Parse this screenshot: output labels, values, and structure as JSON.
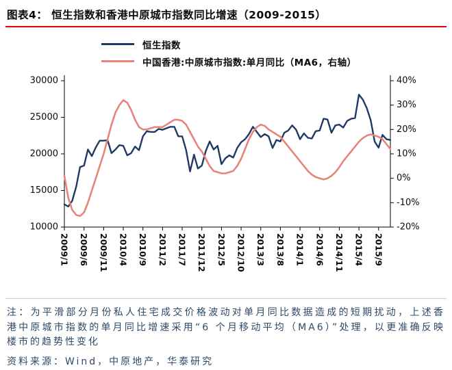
{
  "header": {
    "title": "图表4：  恒生指数和香港中原城市指数同比增速（2009-2015）"
  },
  "legend": [
    {
      "label": "恒生指数",
      "color": "#1f3864"
    },
    {
      "label": "中国香港:中原城市指数:单月同比（MA6，右轴）",
      "color": "#e8837c"
    }
  ],
  "footnote": {
    "note": "注：为平滑部分月份私人住宅成交价格波动对单月同比数据造成的短期扰动，上述香港中原城市指数的单月同比增速采用“6 个月移动平均（MA6）”处理，以更准确反映楼市的趋势性变化",
    "source": "资料来源：Wind，中原地产，华泰研究"
  },
  "colors": {
    "accent_rule": "#e60000",
    "axis": "#000000",
    "hsi_line": "#1f3864",
    "centaline_line": "#e8837c"
  },
  "chart_data": {
    "type": "line",
    "title": "恒生指数和香港中原城市指数同比增速（2009-2015）",
    "x_monthly_start": "2009/1",
    "x_monthly_end": "2015/12",
    "x_tick_indices": [
      0,
      5,
      10,
      15,
      20,
      25,
      30,
      35,
      40,
      45,
      50,
      55,
      60,
      65,
      70,
      75,
      80
    ],
    "x_tick_labels": [
      "2009/1",
      "2009/6",
      "2009/11",
      "2010/4",
      "2010/9",
      "2011/2",
      "2011/7",
      "2011/12",
      "2012/5",
      "2012/10",
      "2013/3",
      "2013/8",
      "2014/1",
      "2014/6",
      "2014/11",
      "2015/4",
      "2015/9"
    ],
    "left_axis": {
      "min": 10000,
      "max": 30000,
      "tick_values": [
        30000,
        25000,
        20000,
        15000,
        10000
      ],
      "tick_labels": [
        "30000",
        "25000",
        "20000",
        "15000",
        "10000"
      ]
    },
    "right_axis": {
      "min": -20,
      "max": 40,
      "tick_values": [
        40,
        30,
        20,
        10,
        0,
        -10,
        -20
      ],
      "tick_labels": [
        "40%",
        "30%",
        "20%",
        "10%",
        "0%",
        "-10%",
        "-20%"
      ]
    },
    "grid": false,
    "legend_position": "top",
    "series": [
      {
        "name": "恒生指数",
        "axis": "left",
        "color": "#1f3864",
        "width": 2.4,
        "values": [
          13100,
          12800,
          13600,
          15500,
          18200,
          18400,
          20600,
          19700,
          20900,
          21800,
          21800,
          21870,
          20100,
          20600,
          21200,
          21100,
          19800,
          20100,
          21000,
          20500,
          22400,
          23100,
          23000,
          23000,
          23400,
          23300,
          23500,
          23700,
          23700,
          22400,
          22400,
          20500,
          17600,
          19900,
          18000,
          18400,
          20400,
          21700,
          20600,
          21100,
          18600,
          19400,
          19800,
          19500,
          20800,
          21600,
          22000,
          22700,
          23700,
          23000,
          22300,
          22700,
          22400,
          20800,
          21900,
          21700,
          22900,
          23200,
          23900,
          23300,
          22000,
          22800,
          22200,
          22100,
          23100,
          23200,
          24800,
          24700,
          22900,
          23900,
          24000,
          23600,
          24500,
          24800,
          24900,
          28100,
          27400,
          26250,
          24600,
          21670,
          20850,
          22600,
          22000,
          21900
        ]
      },
      {
        "name": "中国香港:中原城市指数:单月同比（MA6，右轴）",
        "axis": "right",
        "color": "#e8837c",
        "width": 2.6,
        "values": [
          1,
          -8,
          -13,
          -15,
          -15.5,
          -14,
          -10,
          -5,
          0,
          5,
          10,
          16,
          22,
          27,
          30,
          32,
          31,
          28,
          24,
          21,
          20,
          20,
          20.5,
          21,
          21,
          21,
          22,
          23,
          24,
          24,
          23.5,
          22,
          19,
          16,
          13,
          11,
          8,
          5,
          3,
          2.5,
          2,
          2,
          2.5,
          3,
          5,
          8,
          12,
          16,
          19,
          21,
          22,
          21.5,
          20,
          19,
          18,
          17,
          15,
          13,
          11,
          9,
          7,
          5,
          3,
          1.5,
          0.5,
          0,
          -0.5,
          0,
          1,
          2.5,
          4.5,
          7,
          9,
          11,
          13,
          15,
          16.5,
          17.5,
          18,
          17.5,
          17,
          16,
          14,
          12
        ]
      }
    ]
  }
}
